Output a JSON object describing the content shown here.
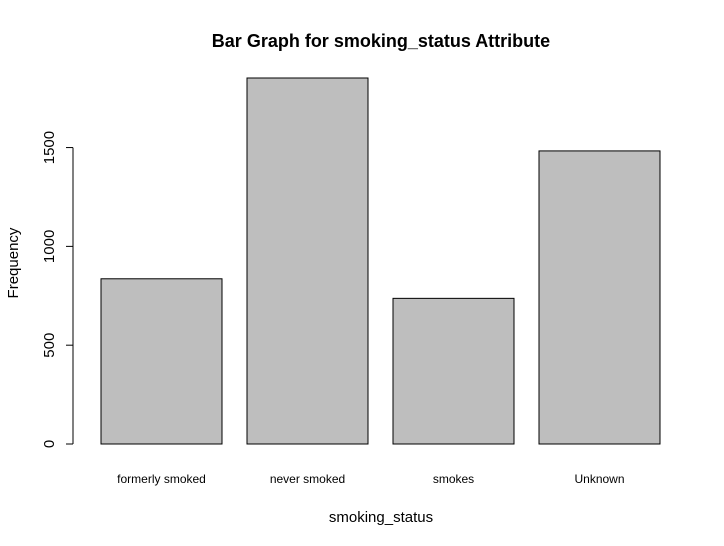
{
  "chart_data": {
    "type": "bar",
    "title": "Bar Graph for smoking_status Attribute",
    "xlabel": "smoking_status",
    "ylabel": "Frequency",
    "categories": [
      "formerly smoked",
      "never smoked",
      "smokes",
      "Unknown"
    ],
    "values": [
      836,
      1852,
      737,
      1483
    ],
    "yticks": [
      0,
      500,
      1000,
      1500
    ],
    "ylim": [
      0,
      1852
    ],
    "grid": false,
    "bar_color": "#bebebe"
  }
}
